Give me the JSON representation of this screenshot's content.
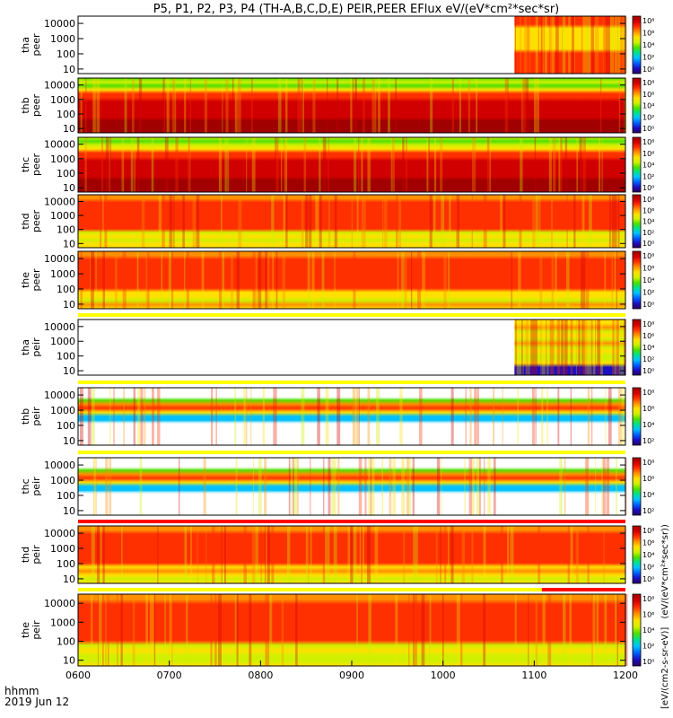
{
  "title": "P5, P1, P2, P3, P4 (TH-A,B,C,D,E) PEIR,PEER EFlux eV/(eV*cm²*sec*sr)",
  "footer": {
    "time_label": "hhmm",
    "date_label": "2019 Jun 12"
  },
  "colorbar_units": "[eV/(cm2-s-sr-eV)]",
  "colorbar_units_suffix": "(eV/(eV*cm²*sec*sr))",
  "colors": {
    "cmap": [
      "#2b0060",
      "#1a10c0",
      "#0060ff",
      "#00c0ff",
      "#00e090",
      "#50e000",
      "#d0f000",
      "#ffe000",
      "#ff9000",
      "#ff3000",
      "#d00000",
      "#a00000"
    ],
    "flag_yellow": "#ffff00",
    "flag_red": "#ff0000",
    "spike_black": "#000000"
  },
  "chart_data": {
    "type": "heatmap",
    "x_ticks": [
      "0600",
      "0700",
      "0800",
      "0900",
      "1000",
      "1100",
      "1200"
    ],
    "x_range_hhmm": [
      "0600",
      "1200"
    ],
    "y_scale": "log",
    "y_range_eV": [
      5,
      30000
    ],
    "y_ticks": [
      "10",
      "100",
      "1000",
      "10000"
    ],
    "panels": [
      {
        "label": "tha",
        "sublabel": "peer",
        "species": "electron",
        "data_start": "1047",
        "data_end": "1200",
        "colorbar_ticks": [
          "10⁸",
          "10⁶",
          "10⁴",
          "10²",
          "10⁰"
        ]
      },
      {
        "label": "thb",
        "sublabel": "peer",
        "species": "electron",
        "data_start": "0600",
        "data_end": "1200",
        "colorbar_ticks": [
          "10⁸",
          "10⁶",
          "10⁴",
          "10²",
          "10⁰"
        ]
      },
      {
        "label": "thc",
        "sublabel": "peer",
        "species": "electron",
        "data_start": "0600",
        "data_end": "1200",
        "colorbar_ticks": [
          "10⁸",
          "10⁶",
          "10⁴",
          "10²",
          "10⁰"
        ]
      },
      {
        "label": "thd",
        "sublabel": "peer",
        "species": "electron",
        "data_start": "0600",
        "data_end": "1200",
        "colorbar_ticks": [
          "10⁸",
          "10⁶",
          "10⁴",
          "10²",
          "10⁰"
        ]
      },
      {
        "label": "the",
        "sublabel": "peer",
        "species": "electron",
        "data_start": "0600",
        "data_end": "1200",
        "colorbar_ticks": [
          "10⁸",
          "10⁶",
          "10⁴",
          "10²",
          "10⁰"
        ]
      },
      {
        "label": "tha",
        "sublabel": "peir",
        "species": "ion",
        "data_start": "1047",
        "data_end": "1200",
        "colorbar_ticks": [
          "10⁸",
          "10⁶",
          "10⁴",
          "10²",
          "10⁰"
        ]
      },
      {
        "label": "thb",
        "sublabel": "peir",
        "species": "ion",
        "data_start": "0600",
        "data_end": "1200",
        "colorbar_ticks": [
          "10⁸",
          "10⁶",
          "10⁴",
          "10²"
        ]
      },
      {
        "label": "thc",
        "sublabel": "peir",
        "species": "ion",
        "data_start": "0600",
        "data_end": "1200",
        "colorbar_ticks": [
          "10⁸",
          "10⁶",
          "10⁴",
          "10²"
        ]
      },
      {
        "label": "thd",
        "sublabel": "peir",
        "species": "ion",
        "data_start": "0600",
        "data_end": "1200",
        "colorbar_ticks": [
          "10⁸",
          "10⁶",
          "10⁴",
          "10²",
          "10⁰"
        ]
      },
      {
        "label": "the",
        "sublabel": "peir",
        "species": "ion",
        "data_start": "0600",
        "data_end": "1200",
        "colorbar_ticks": [
          "10⁸",
          "10⁶",
          "10⁴",
          "10²",
          "10⁰"
        ]
      }
    ]
  }
}
